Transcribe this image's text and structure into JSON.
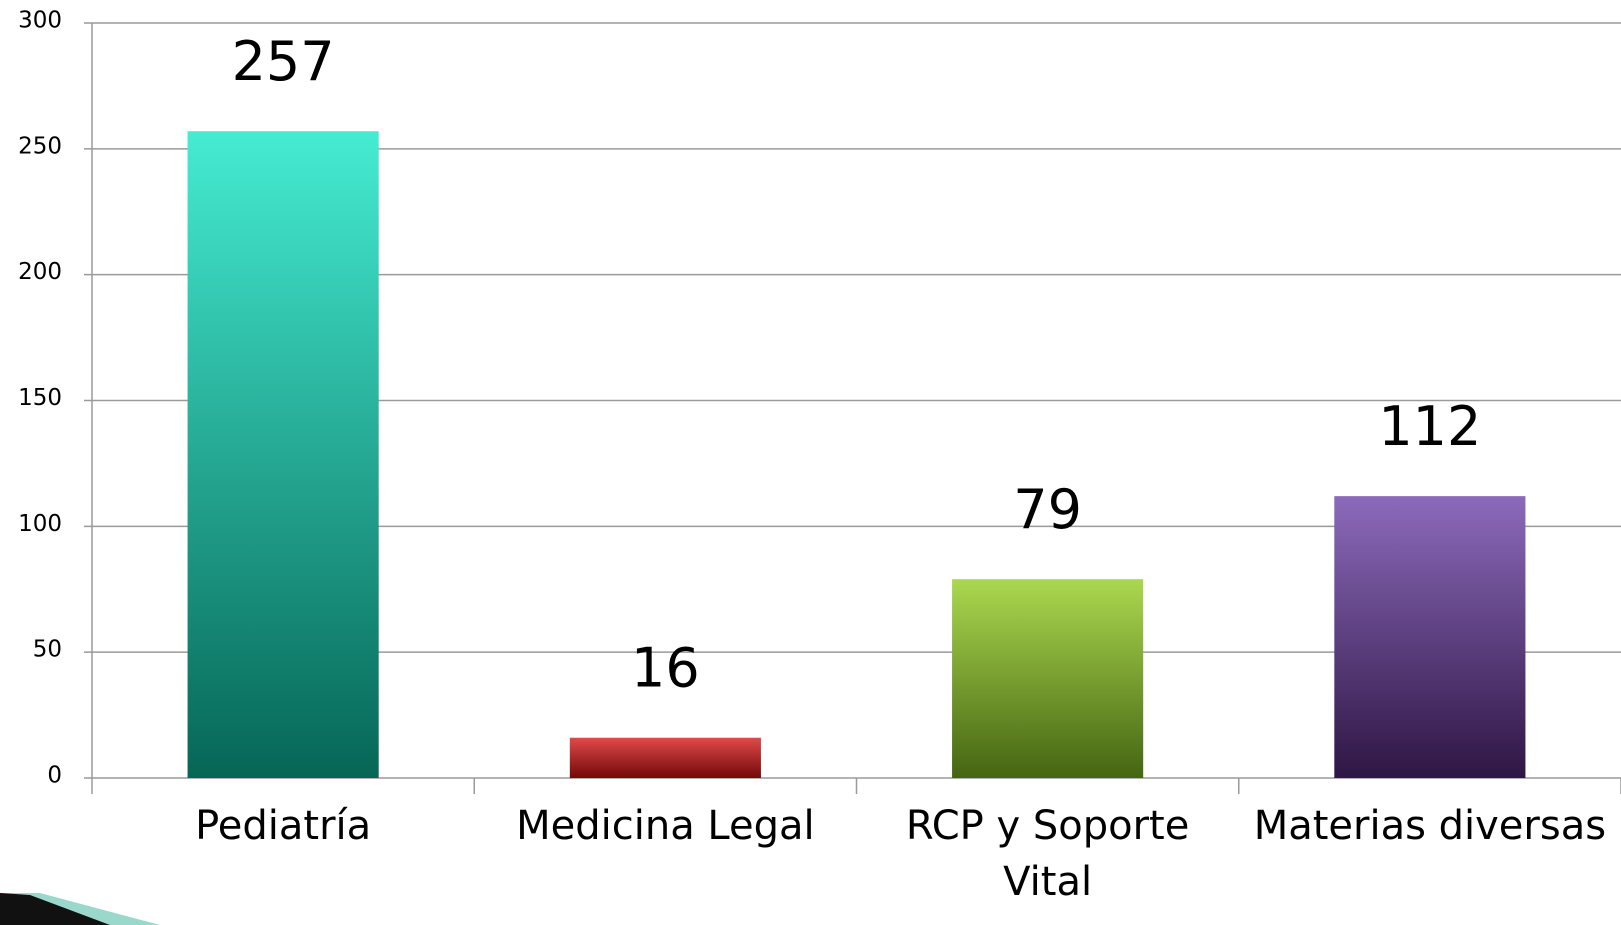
{
  "chart_data": {
    "type": "bar",
    "categories": [
      "Pediatría",
      "Medicina Legal",
      "RCP y Soporte Vital",
      "Materias diversas"
    ],
    "values": [
      257,
      16,
      79,
      112
    ],
    "colors": [
      [
        "#45ecd2",
        "#066656"
      ],
      [
        "#e04a4a",
        "#730808"
      ],
      [
        "#abd84f",
        "#456512"
      ],
      [
        "#8c6abb",
        "#2e1644"
      ]
    ],
    "ylim": [
      0,
      300
    ],
    "yticks": [
      0,
      50,
      100,
      150,
      200,
      250,
      300
    ],
    "grid": true
  }
}
